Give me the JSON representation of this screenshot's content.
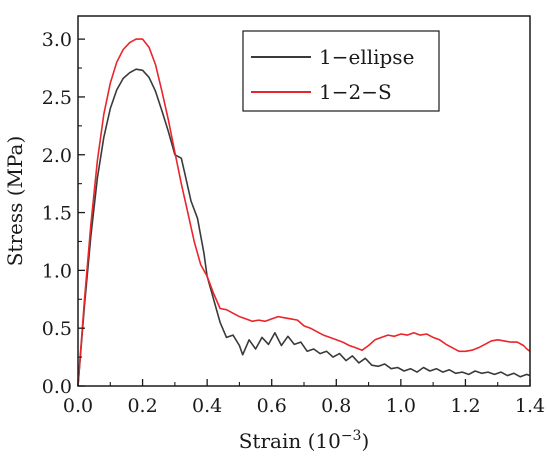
{
  "chart_data": {
    "type": "line",
    "xlabel_main": "Strain (10",
    "xlabel_sup": "−3",
    "xlabel_close": ")",
    "ylabel": "Stress (MPa)",
    "xlim": [
      0,
      1.4
    ],
    "ylim": [
      0,
      3.2
    ],
    "xticks": [
      0.0,
      0.2,
      0.4,
      0.6,
      0.8,
      1.0,
      1.2,
      1.4
    ],
    "yticks": [
      0.0,
      0.5,
      1.0,
      1.5,
      2.0,
      2.5,
      3.0
    ],
    "xtick_labels": [
      "0.0",
      "0.2",
      "0.4",
      "0.6",
      "0.8",
      "1.0",
      "1.2",
      "1.4"
    ],
    "ytick_labels": [
      "0.0",
      "0.5",
      "1.0",
      "1.5",
      "2.0",
      "2.5",
      "3.0"
    ],
    "legend_position": "top-right",
    "grid": false,
    "series": [
      {
        "name": "1−ellipse",
        "color": "#3a3a3a",
        "points": [
          [
            0.0,
            0.0
          ],
          [
            0.02,
            0.7
          ],
          [
            0.04,
            1.3
          ],
          [
            0.06,
            1.8
          ],
          [
            0.08,
            2.15
          ],
          [
            0.1,
            2.4
          ],
          [
            0.12,
            2.56
          ],
          [
            0.14,
            2.66
          ],
          [
            0.16,
            2.71
          ],
          [
            0.18,
            2.74
          ],
          [
            0.2,
            2.73
          ],
          [
            0.22,
            2.67
          ],
          [
            0.24,
            2.55
          ],
          [
            0.26,
            2.38
          ],
          [
            0.28,
            2.2
          ],
          [
            0.3,
            2.0
          ],
          [
            0.32,
            1.97
          ],
          [
            0.33,
            1.85
          ],
          [
            0.35,
            1.6
          ],
          [
            0.37,
            1.45
          ],
          [
            0.39,
            1.15
          ],
          [
            0.4,
            0.95
          ],
          [
            0.42,
            0.75
          ],
          [
            0.44,
            0.55
          ],
          [
            0.46,
            0.42
          ],
          [
            0.48,
            0.44
          ],
          [
            0.5,
            0.35
          ],
          [
            0.51,
            0.27
          ],
          [
            0.53,
            0.4
          ],
          [
            0.55,
            0.32
          ],
          [
            0.57,
            0.42
          ],
          [
            0.59,
            0.36
          ],
          [
            0.61,
            0.46
          ],
          [
            0.63,
            0.35
          ],
          [
            0.65,
            0.43
          ],
          [
            0.67,
            0.36
          ],
          [
            0.69,
            0.38
          ],
          [
            0.71,
            0.3
          ],
          [
            0.73,
            0.32
          ],
          [
            0.75,
            0.28
          ],
          [
            0.77,
            0.3
          ],
          [
            0.79,
            0.25
          ],
          [
            0.81,
            0.28
          ],
          [
            0.83,
            0.22
          ],
          [
            0.85,
            0.26
          ],
          [
            0.87,
            0.2
          ],
          [
            0.89,
            0.24
          ],
          [
            0.91,
            0.18
          ],
          [
            0.93,
            0.17
          ],
          [
            0.95,
            0.19
          ],
          [
            0.97,
            0.15
          ],
          [
            0.99,
            0.16
          ],
          [
            1.01,
            0.13
          ],
          [
            1.03,
            0.15
          ],
          [
            1.05,
            0.12
          ],
          [
            1.07,
            0.16
          ],
          [
            1.09,
            0.13
          ],
          [
            1.11,
            0.15
          ],
          [
            1.13,
            0.12
          ],
          [
            1.15,
            0.14
          ],
          [
            1.17,
            0.11
          ],
          [
            1.19,
            0.12
          ],
          [
            1.21,
            0.1
          ],
          [
            1.23,
            0.13
          ],
          [
            1.25,
            0.11
          ],
          [
            1.27,
            0.12
          ],
          [
            1.29,
            0.1
          ],
          [
            1.31,
            0.12
          ],
          [
            1.33,
            0.09
          ],
          [
            1.35,
            0.11
          ],
          [
            1.37,
            0.08
          ],
          [
            1.39,
            0.1
          ],
          [
            1.4,
            0.09
          ]
        ]
      },
      {
        "name": "1−2−S",
        "color": "#e8262b",
        "points": [
          [
            0.0,
            0.0
          ],
          [
            0.02,
            0.75
          ],
          [
            0.04,
            1.4
          ],
          [
            0.06,
            1.95
          ],
          [
            0.08,
            2.35
          ],
          [
            0.1,
            2.62
          ],
          [
            0.12,
            2.8
          ],
          [
            0.14,
            2.91
          ],
          [
            0.16,
            2.97
          ],
          [
            0.18,
            3.0
          ],
          [
            0.2,
            3.0
          ],
          [
            0.22,
            2.93
          ],
          [
            0.24,
            2.78
          ],
          [
            0.26,
            2.55
          ],
          [
            0.28,
            2.3
          ],
          [
            0.3,
            2.02
          ],
          [
            0.32,
            1.75
          ],
          [
            0.34,
            1.5
          ],
          [
            0.36,
            1.25
          ],
          [
            0.38,
            1.05
          ],
          [
            0.4,
            0.95
          ],
          [
            0.42,
            0.8
          ],
          [
            0.44,
            0.67
          ],
          [
            0.46,
            0.66
          ],
          [
            0.48,
            0.63
          ],
          [
            0.5,
            0.6
          ],
          [
            0.52,
            0.58
          ],
          [
            0.54,
            0.56
          ],
          [
            0.56,
            0.57
          ],
          [
            0.58,
            0.56
          ],
          [
            0.6,
            0.58
          ],
          [
            0.62,
            0.6
          ],
          [
            0.64,
            0.59
          ],
          [
            0.66,
            0.58
          ],
          [
            0.68,
            0.57
          ],
          [
            0.7,
            0.52
          ],
          [
            0.72,
            0.5
          ],
          [
            0.74,
            0.47
          ],
          [
            0.76,
            0.44
          ],
          [
            0.78,
            0.42
          ],
          [
            0.8,
            0.4
          ],
          [
            0.82,
            0.38
          ],
          [
            0.84,
            0.35
          ],
          [
            0.86,
            0.33
          ],
          [
            0.88,
            0.31
          ],
          [
            0.9,
            0.35
          ],
          [
            0.92,
            0.4
          ],
          [
            0.94,
            0.42
          ],
          [
            0.96,
            0.44
          ],
          [
            0.98,
            0.43
          ],
          [
            1.0,
            0.45
          ],
          [
            1.02,
            0.44
          ],
          [
            1.04,
            0.46
          ],
          [
            1.06,
            0.44
          ],
          [
            1.08,
            0.45
          ],
          [
            1.1,
            0.42
          ],
          [
            1.12,
            0.4
          ],
          [
            1.14,
            0.36
          ],
          [
            1.16,
            0.33
          ],
          [
            1.18,
            0.3
          ],
          [
            1.2,
            0.3
          ],
          [
            1.22,
            0.31
          ],
          [
            1.24,
            0.33
          ],
          [
            1.26,
            0.36
          ],
          [
            1.28,
            0.39
          ],
          [
            1.3,
            0.4
          ],
          [
            1.32,
            0.39
          ],
          [
            1.34,
            0.38
          ],
          [
            1.36,
            0.38
          ],
          [
            1.38,
            0.35
          ],
          [
            1.39,
            0.32
          ],
          [
            1.4,
            0.3
          ]
        ]
      }
    ]
  }
}
